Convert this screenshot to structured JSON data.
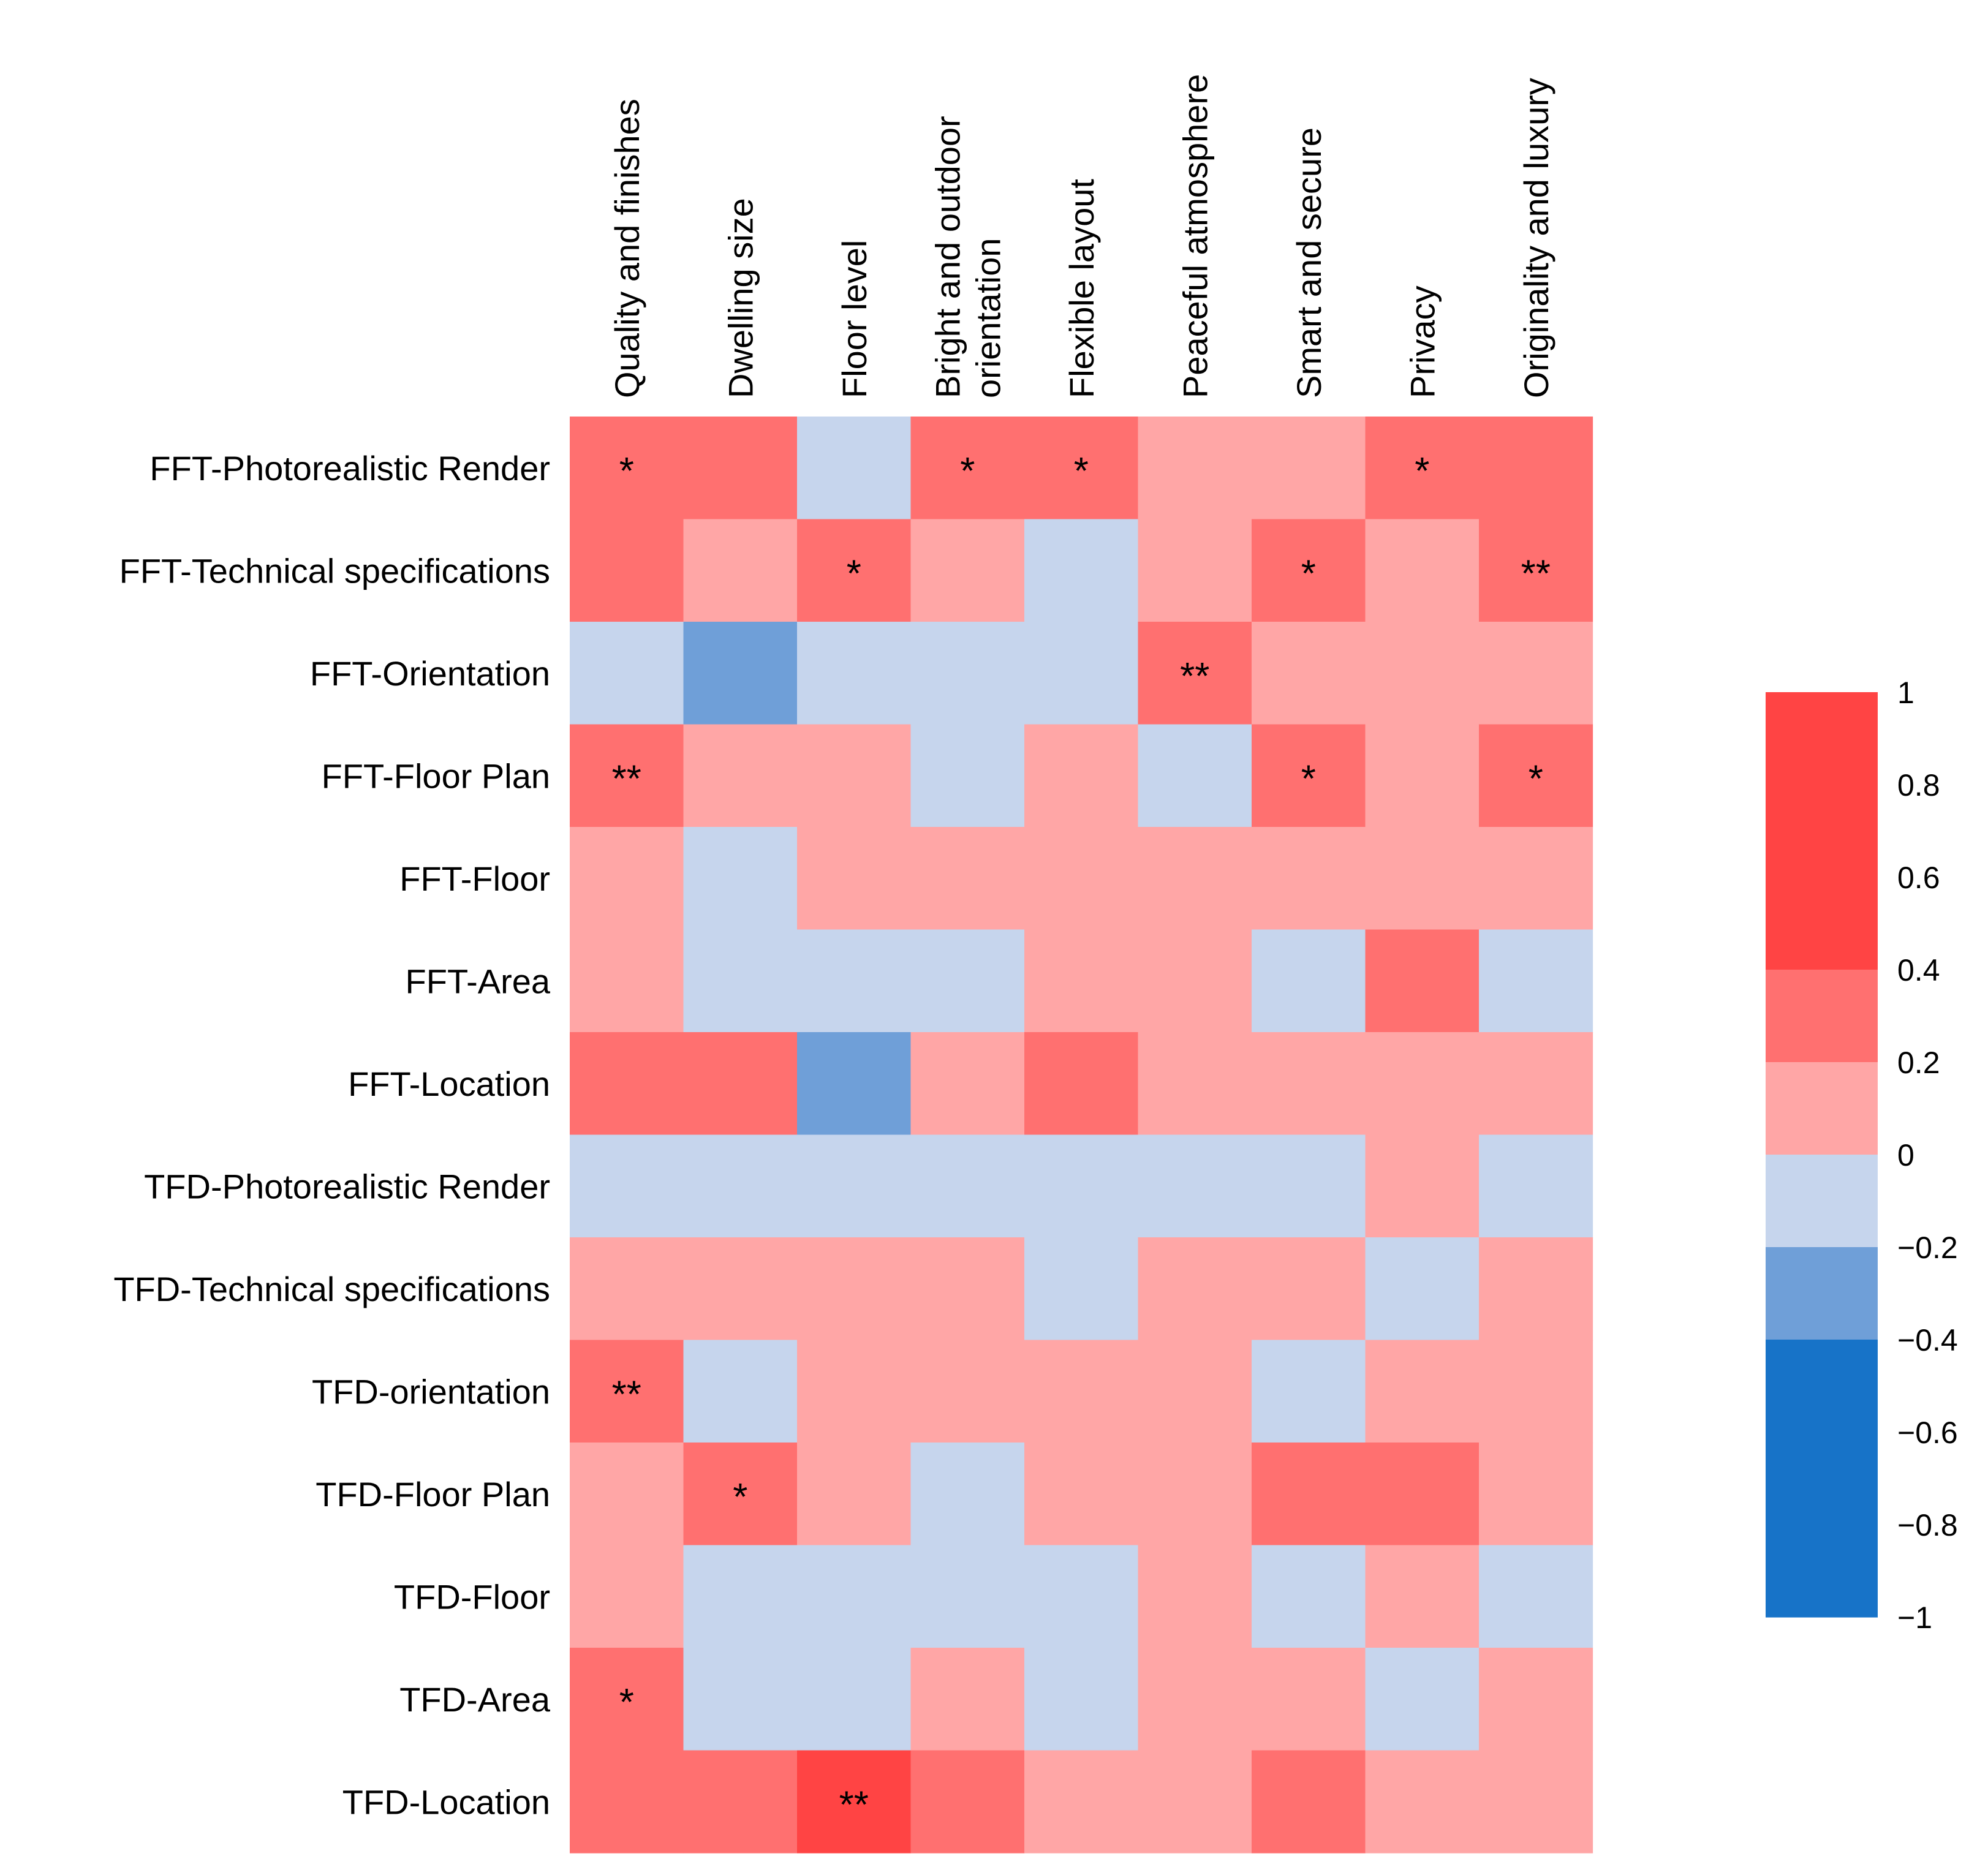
{
  "chart_data": {
    "type": "heatmap",
    "title": "",
    "columns": [
      [
        "Quality and finishes"
      ],
      [
        "Dwelling size"
      ],
      [
        "Floor level"
      ],
      [
        "Bright and outdoor",
        "orientation"
      ],
      [
        "Flexible layout"
      ],
      [
        "Peaceful atmosphere"
      ],
      [
        "Smart and secure"
      ],
      [
        "Privacy"
      ],
      [
        "Originality and luxury"
      ]
    ],
    "rows": [
      "FFT-Photorealistic Render",
      "FFT-Technical specifications",
      "FFT-Orientation",
      "FFT-Floor Plan",
      "FFT-Floor",
      "FFT-Area",
      "FFT-Location",
      "TFD-Photorealistic Render",
      "TFD-Technical specifications",
      "TFD-orientation",
      "TFD-Floor  Plan",
      "TFD-Floor",
      "TFD-Area",
      "TFD-Location"
    ],
    "values": [
      [
        0.3,
        0.3,
        -0.1,
        0.3,
        0.3,
        0.1,
        0.1,
        0.3,
        0.3
      ],
      [
        0.3,
        0.1,
        0.3,
        0.1,
        -0.1,
        0.1,
        0.3,
        0.1,
        0.3
      ],
      [
        -0.1,
        -0.3,
        -0.1,
        -0.1,
        -0.1,
        0.3,
        0.1,
        0.1,
        0.1
      ],
      [
        0.3,
        0.1,
        0.1,
        -0.1,
        0.1,
        -0.1,
        0.3,
        0.1,
        0.3
      ],
      [
        0.1,
        -0.1,
        0.1,
        0.1,
        0.1,
        0.1,
        0.1,
        0.1,
        0.1
      ],
      [
        0.1,
        -0.1,
        -0.1,
        -0.1,
        0.1,
        0.1,
        -0.1,
        0.3,
        -0.1
      ],
      [
        0.3,
        0.3,
        -0.3,
        0.1,
        0.3,
        0.1,
        0.1,
        0.1,
        0.1
      ],
      [
        -0.1,
        -0.1,
        -0.1,
        -0.1,
        -0.1,
        -0.1,
        -0.1,
        0.1,
        -0.1
      ],
      [
        0.1,
        0.1,
        0.1,
        0.1,
        -0.1,
        0.1,
        0.1,
        -0.1,
        0.1
      ],
      [
        0.3,
        -0.1,
        0.1,
        0.1,
        0.1,
        0.1,
        -0.1,
        0.1,
        0.1
      ],
      [
        0.1,
        0.3,
        0.1,
        -0.1,
        0.1,
        0.1,
        0.3,
        0.3,
        0.1
      ],
      [
        0.1,
        -0.1,
        -0.1,
        -0.1,
        -0.1,
        0.1,
        -0.1,
        0.1,
        -0.1
      ],
      [
        0.3,
        -0.1,
        -0.1,
        0.1,
        -0.1,
        0.1,
        0.1,
        -0.1,
        0.1
      ],
      [
        0.3,
        0.3,
        0.5,
        0.3,
        0.1,
        0.1,
        0.3,
        0.1,
        0.1
      ]
    ],
    "significance": [
      [
        "*",
        "",
        "",
        "*",
        "*",
        "",
        "",
        "*",
        ""
      ],
      [
        "",
        "",
        "*",
        "",
        "",
        "",
        "*",
        "",
        "**"
      ],
      [
        "",
        "",
        "",
        "",
        "",
        "**",
        "",
        "",
        ""
      ],
      [
        "**",
        "",
        "",
        "",
        "",
        "",
        "*",
        "",
        "*"
      ],
      [
        "",
        "",
        "",
        "",
        "",
        "",
        "",
        "",
        ""
      ],
      [
        "",
        "",
        "",
        "",
        "",
        "",
        "",
        "",
        ""
      ],
      [
        "",
        "",
        "",
        "",
        "",
        "",
        "",
        "",
        ""
      ],
      [
        "",
        "",
        "",
        "",
        "",
        "",
        "",
        "",
        ""
      ],
      [
        "",
        "",
        "",
        "",
        "",
        "",
        "",
        "",
        ""
      ],
      [
        "**",
        "",
        "",
        "",
        "",
        "",
        "",
        "",
        ""
      ],
      [
        "",
        "*",
        "",
        "",
        "",
        "",
        "",
        "",
        ""
      ],
      [
        "",
        "",
        "",
        "",
        "",
        "",
        "",
        "",
        ""
      ],
      [
        "*",
        "",
        "",
        "",
        "",
        "",
        "",
        "",
        ""
      ],
      [
        "",
        "",
        "**",
        "",
        "",
        "",
        "",
        "",
        ""
      ]
    ],
    "colorbar": {
      "range": [
        -1,
        1
      ],
      "ticks": [
        "1",
        "0.8",
        "0.6",
        "0.4",
        "0.2",
        "0",
        "−0.2",
        "−0.4",
        "−0.6",
        "−0.8",
        "−1"
      ],
      "bins": [
        {
          "from": 0.4,
          "to": 1.0,
          "color": "#ff4444"
        },
        {
          "from": 0.2,
          "to": 0.4,
          "color": "#ff7070"
        },
        {
          "from": 0.0,
          "to": 0.2,
          "color": "#ffa6a6"
        },
        {
          "from": -0.2,
          "to": 0.0,
          "color": "#c6d5ed"
        },
        {
          "from": -0.4,
          "to": -0.2,
          "color": "#6f9fd8"
        },
        {
          "from": -1.0,
          "to": -0.4,
          "color": "#1773c8"
        }
      ]
    },
    "grid": false,
    "legend": "right"
  }
}
